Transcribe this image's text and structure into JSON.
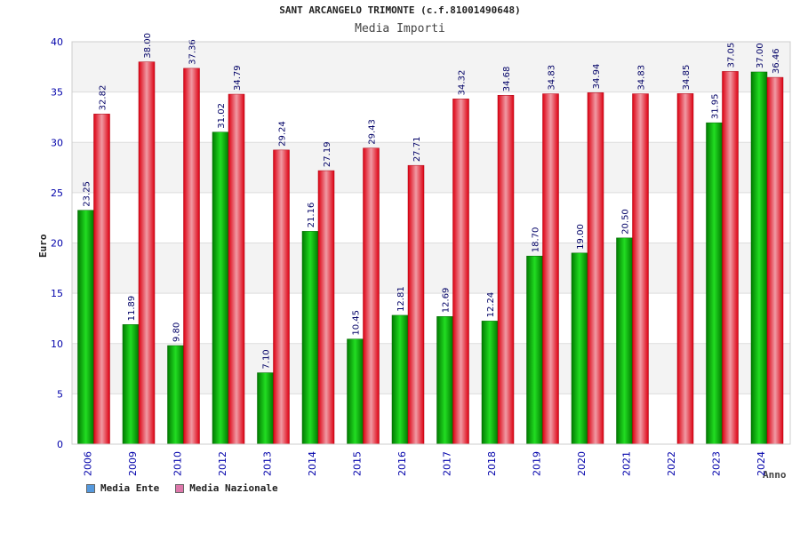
{
  "chart_data": {
    "type": "bar",
    "title": "SANT ARCANGELO TRIMONTE (c.f.81001490648)",
    "subtitle": "Media Importi",
    "ylabel": "Euro",
    "xlabel": "Anno",
    "ylim": [
      0,
      40
    ],
    "yticks": [
      0,
      5,
      10,
      15,
      20,
      25,
      30,
      35,
      40
    ],
    "grid": true,
    "legend_position": "bottom-left",
    "categories": [
      "2006",
      "2009",
      "2010",
      "2012",
      "2013",
      "2014",
      "2015",
      "2016",
      "2017",
      "2018",
      "2019",
      "2020",
      "2021",
      "2022",
      "2023",
      "2024"
    ],
    "series": [
      {
        "name": "Media Ente",
        "color": "#00bb00",
        "legend_color": "#5599dd",
        "values": [
          23.25,
          11.89,
          9.8,
          31.02,
          7.1,
          21.16,
          10.45,
          12.81,
          12.69,
          12.24,
          18.7,
          19.0,
          20.5,
          null,
          31.95,
          37.0
        ]
      },
      {
        "name": "Media Nazionale",
        "color": "#ee1122",
        "legend_color": "#dd77aa",
        "values": [
          32.82,
          38.0,
          37.36,
          34.79,
          29.24,
          27.19,
          29.43,
          27.71,
          34.32,
          34.68,
          34.83,
          34.94,
          34.83,
          34.85,
          37.05,
          36.46
        ]
      }
    ]
  }
}
